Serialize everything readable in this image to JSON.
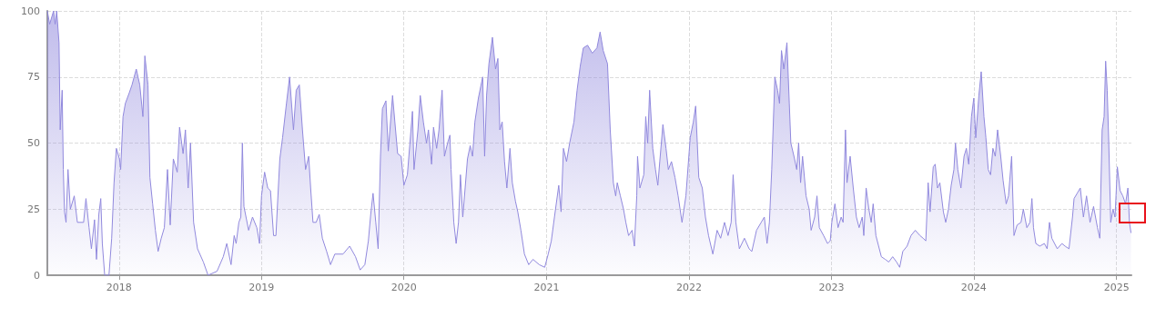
{
  "chart_data": {
    "type": "area",
    "xlim": [
      "2017-07-01",
      "2025-02-08"
    ],
    "xticks": [
      "2018",
      "2019",
      "2020",
      "2021",
      "2022",
      "2023",
      "2024",
      "2025"
    ],
    "ylim": [
      0,
      100
    ],
    "yticks": [
      0,
      25,
      50,
      75,
      100
    ],
    "grid": true,
    "series": [
      {
        "color": "#9189dd",
        "x": [
          "2017-07-01",
          "2017-07-07",
          "2017-07-17",
          "2017-07-21",
          "2017-07-25",
          "2017-07-31",
          "2017-08-03",
          "2017-08-08",
          "2017-08-11",
          "2017-08-14",
          "2017-08-18",
          "2017-08-23",
          "2017-08-29",
          "2017-09-08",
          "2017-09-16",
          "2017-10-02",
          "2017-10-08",
          "2017-10-16",
          "2017-10-22",
          "2017-10-30",
          "2017-11-04",
          "2017-11-10",
          "2017-11-15",
          "2017-11-19",
          "2017-11-25",
          "2017-12-06",
          "2017-12-13",
          "2017-12-19",
          "2017-12-25",
          "2018-01-02",
          "2018-01-05",
          "2018-01-11",
          "2018-01-17",
          "2018-01-27",
          "2018-02-03",
          "2018-02-14",
          "2018-02-23",
          "2018-03-03",
          "2018-03-08",
          "2018-03-16",
          "2018-03-21",
          "2018-03-28",
          "2018-04-04",
          "2018-04-11",
          "2018-04-19",
          "2018-04-27",
          "2018-05-05",
          "2018-05-12",
          "2018-05-20",
          "2018-05-30",
          "2018-06-05",
          "2018-06-14",
          "2018-06-20",
          "2018-06-27",
          "2018-07-03",
          "2018-07-11",
          "2018-07-21",
          "2018-08-05",
          "2018-08-17",
          "2018-09-09",
          "2018-09-25",
          "2018-10-04",
          "2018-10-15",
          "2018-10-23",
          "2018-10-28",
          "2018-11-04",
          "2018-11-09",
          "2018-11-13",
          "2018-11-17",
          "2018-11-29",
          "2018-12-09",
          "2018-12-20",
          "2018-12-27",
          "2019-01-01",
          "2019-01-09",
          "2019-01-17",
          "2019-01-24",
          "2019-02-01",
          "2019-02-07",
          "2019-02-17",
          "2019-02-24",
          "2019-03-06",
          "2019-03-14",
          "2019-03-24",
          "2019-03-31",
          "2019-04-08",
          "2019-04-16",
          "2019-04-24",
          "2019-05-02",
          "2019-05-07",
          "2019-05-13",
          "2019-05-21",
          "2019-05-29",
          "2019-06-06",
          "2019-06-17",
          "2019-06-27",
          "2019-07-08",
          "2019-07-29",
          "2019-08-15",
          "2019-08-30",
          "2019-09-11",
          "2019-09-23",
          "2019-10-02",
          "2019-10-08",
          "2019-10-14",
          "2019-10-21",
          "2019-10-27",
          "2019-11-02",
          "2019-11-07",
          "2019-11-16",
          "2019-11-22",
          "2019-12-03",
          "2019-12-16",
          "2019-12-25",
          "2020-01-01",
          "2020-01-10",
          "2020-01-23",
          "2020-01-27",
          "2020-02-06",
          "2020-02-12",
          "2020-02-20",
          "2020-02-28",
          "2020-03-04",
          "2020-03-12",
          "2020-03-17",
          "2020-03-25",
          "2020-03-31",
          "2020-04-08",
          "2020-04-14",
          "2020-04-22",
          "2020-04-28",
          "2020-05-01",
          "2020-05-08",
          "2020-05-14",
          "2020-05-20",
          "2020-05-25",
          "2020-05-31",
          "2020-06-06",
          "2020-06-12",
          "2020-06-19",
          "2020-06-25",
          "2020-07-01",
          "2020-07-10",
          "2020-07-21",
          "2020-07-26",
          "2020-07-31",
          "2020-08-06",
          "2020-08-15",
          "2020-08-23",
          "2020-08-29",
          "2020-09-03",
          "2020-09-09",
          "2020-09-15",
          "2020-09-21",
          "2020-09-29",
          "2020-10-05",
          "2020-10-13",
          "2020-10-19",
          "2020-10-27",
          "2020-11-05",
          "2020-11-16",
          "2020-11-27",
          "2020-12-13",
          "2020-12-27",
          "2021-01-05",
          "2021-01-13",
          "2021-01-21",
          "2021-02-01",
          "2021-02-07",
          "2021-02-13",
          "2021-02-21",
          "2021-03-01",
          "2021-03-12",
          "2021-03-20",
          "2021-03-28",
          "2021-04-05",
          "2021-04-16",
          "2021-04-28",
          "2021-05-10",
          "2021-05-18",
          "2021-05-26",
          "2021-06-06",
          "2021-06-13",
          "2021-06-21",
          "2021-06-27",
          "2021-07-01",
          "2021-07-09",
          "2021-07-17",
          "2021-07-23",
          "2021-07-30",
          "2021-08-08",
          "2021-08-14",
          "2021-08-20",
          "2021-08-22",
          "2021-08-28",
          "2021-09-07",
          "2021-09-12",
          "2021-09-17",
          "2021-09-22",
          "2021-09-30",
          "2021-10-07",
          "2021-10-13",
          "2021-10-18",
          "2021-10-26",
          "2021-11-03",
          "2021-11-09",
          "2021-11-17",
          "2021-11-26",
          "2021-12-04",
          "2021-12-14",
          "2021-12-24",
          "2022-01-04",
          "2022-01-12",
          "2022-01-18",
          "2022-01-26",
          "2022-02-04",
          "2022-02-12",
          "2022-02-20",
          "2022-03-03",
          "2022-03-14",
          "2022-03-23",
          "2022-04-02",
          "2022-04-11",
          "2022-04-19",
          "2022-04-24",
          "2022-05-01",
          "2022-05-10",
          "2022-05-23",
          "2022-06-04",
          "2022-06-11",
          "2022-06-23",
          "2022-07-05",
          "2022-07-13",
          "2022-07-20",
          "2022-07-26",
          "2022-08-01",
          "2022-08-09",
          "2022-08-16",
          "2022-08-21",
          "2022-08-26",
          "2022-09-01",
          "2022-09-09",
          "2022-09-15",
          "2022-09-19",
          "2022-09-27",
          "2022-10-04",
          "2022-10-09",
          "2022-10-14",
          "2022-10-19",
          "2022-10-28",
          "2022-11-05",
          "2022-11-10",
          "2022-11-19",
          "2022-11-25",
          "2022-12-01",
          "2022-12-12",
          "2022-12-22",
          "2022-12-29",
          "2023-01-02",
          "2023-01-10",
          "2023-01-18",
          "2023-01-26",
          "2023-01-31",
          "2023-02-06",
          "2023-02-10",
          "2023-02-18",
          "2023-02-26",
          "2023-03-06",
          "2023-03-13",
          "2023-03-21",
          "2023-03-25",
          "2023-03-31",
          "2023-04-07",
          "2023-04-13",
          "2023-04-18",
          "2023-04-25",
          "2023-05-02",
          "2023-05-09",
          "2023-05-19",
          "2023-05-28",
          "2023-06-07",
          "2023-06-17",
          "2023-06-25",
          "2023-07-03",
          "2023-07-14",
          "2023-07-24",
          "2023-08-04",
          "2023-08-16",
          "2023-08-24",
          "2023-08-31",
          "2023-09-06",
          "2023-09-11",
          "2023-09-19",
          "2023-09-24",
          "2023-09-30",
          "2023-10-06",
          "2023-10-15",
          "2023-10-21",
          "2023-10-28",
          "2023-11-04",
          "2023-11-11",
          "2023-11-15",
          "2023-11-21",
          "2023-11-29",
          "2023-12-07",
          "2023-12-13",
          "2023-12-19",
          "2023-12-26",
          "2024-01-01",
          "2024-01-06",
          "2024-01-14",
          "2024-01-20",
          "2024-01-27",
          "2024-02-01",
          "2024-02-07",
          "2024-02-13",
          "2024-02-19",
          "2024-02-25",
          "2024-03-02",
          "2024-03-10",
          "2024-03-16",
          "2024-03-24",
          "2024-03-30",
          "2024-04-07",
          "2024-04-13",
          "2024-04-21",
          "2024-05-01",
          "2024-05-07",
          "2024-05-16",
          "2024-05-24",
          "2024-05-29",
          "2024-06-02",
          "2024-06-08",
          "2024-06-18",
          "2024-06-30",
          "2024-07-07",
          "2024-07-13",
          "2024-07-19",
          "2024-08-02",
          "2024-08-14",
          "2024-08-22",
          "2024-09-01",
          "2024-09-10",
          "2024-09-14",
          "2024-09-22",
          "2024-09-30",
          "2024-10-08",
          "2024-10-16",
          "2024-10-25",
          "2024-11-03",
          "2024-11-13",
          "2024-11-19",
          "2024-11-25",
          "2024-11-30",
          "2024-12-04",
          "2024-12-08",
          "2024-12-12",
          "2024-12-17",
          "2024-12-23",
          "2024-12-28",
          "2025-01-03",
          "2025-01-10",
          "2025-01-17",
          "2025-01-24",
          "2025-01-30",
          "2025-02-03",
          "2025-02-07"
        ],
        "values": [
          100,
          95,
          100,
          95,
          100,
          88,
          55,
          70,
          40,
          24,
          20,
          40,
          25,
          30,
          20,
          20,
          29,
          18,
          10,
          21,
          6,
          23,
          29,
          12,
          0,
          0,
          14,
          35,
          48,
          44,
          40,
          60,
          65,
          69,
          72,
          78,
          72,
          60,
          83,
          72,
          37,
          27,
          17,
          9,
          14,
          18,
          40,
          19,
          44,
          39,
          56,
          46,
          55,
          33,
          50,
          20,
          10,
          5,
          0,
          1.5,
          7,
          12,
          4,
          15,
          12,
          20,
          22,
          50,
          26,
          17,
          22,
          18,
          12,
          30,
          39,
          33,
          32,
          15,
          15,
          44,
          52,
          65,
          75,
          55,
          70,
          72,
          55,
          40,
          45,
          33,
          20,
          20,
          23,
          14,
          9,
          4,
          8,
          8,
          11,
          7,
          2,
          4,
          13,
          23,
          31,
          20,
          10,
          45,
          63,
          66,
          47,
          68,
          46,
          45,
          34,
          38,
          62,
          40,
          55,
          68,
          58,
          50,
          55,
          42,
          56,
          48,
          55,
          70,
          45,
          50,
          53,
          40,
          20,
          12,
          20,
          38,
          22,
          33,
          44,
          49,
          45,
          58,
          67,
          75,
          45,
          68,
          80,
          90,
          78,
          82,
          55,
          58,
          43,
          33,
          48,
          35,
          28,
          24,
          17,
          8,
          4,
          6,
          4,
          3,
          8,
          13,
          22,
          34,
          24,
          48,
          43,
          50,
          58,
          70,
          79,
          86,
          87,
          84,
          86,
          92,
          85,
          80,
          55,
          35,
          30,
          35,
          30,
          25,
          20,
          15,
          17,
          11,
          30,
          45,
          33,
          38,
          60,
          50,
          70,
          48,
          40,
          34,
          43,
          57,
          48,
          40,
          43,
          37,
          30,
          20,
          30,
          52,
          58,
          64,
          37,
          33,
          22,
          15,
          8,
          17,
          14,
          20,
          15,
          20,
          38,
          20,
          10,
          14,
          10,
          9,
          17,
          20,
          22,
          12,
          20,
          40,
          75,
          70,
          65,
          85,
          78,
          88,
          65,
          50,
          45,
          40,
          50,
          35,
          45,
          30,
          25,
          17,
          22,
          30,
          18,
          15,
          12,
          13,
          20,
          27,
          18,
          22,
          20,
          55,
          35,
          45,
          33,
          22,
          18,
          22,
          15,
          33,
          25,
          20,
          27,
          15,
          11,
          7,
          6,
          5,
          7,
          5,
          3,
          9,
          11,
          15,
          17,
          15,
          14,
          13,
          35,
          24,
          41,
          42,
          33,
          35,
          24,
          20,
          25,
          34,
          40,
          50,
          40,
          33,
          45,
          48,
          42,
          60,
          67,
          52,
          68,
          77,
          60,
          52,
          40,
          38,
          48,
          45,
          55,
          45,
          36,
          27,
          30,
          45,
          15,
          19,
          20,
          25,
          18,
          20,
          29,
          18,
          12,
          11,
          12,
          10,
          20,
          14,
          10,
          12,
          11,
          10,
          22,
          29,
          31,
          33,
          22,
          30,
          20,
          26,
          18,
          14,
          55,
          60,
          81,
          70,
          50,
          20,
          25,
          22,
          41,
          32,
          30,
          27,
          33,
          20,
          16
        ]
      }
    ]
  }
}
